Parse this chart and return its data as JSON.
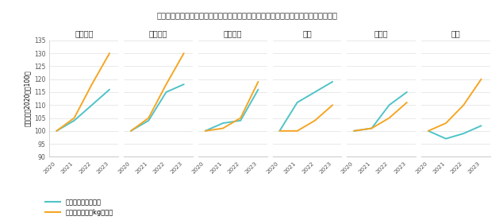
{
  "title": "ペットケア市場主要国における、可処分所得の中央値とペットフード単価推移の比較",
  "countries": [
    "アメリカ",
    "ブラジル",
    "イギリス",
    "中国",
    "ドイツ",
    "日本"
  ],
  "years": [
    2020,
    2021,
    2022,
    2023
  ],
  "income_data": {
    "アメリカ": [
      100,
      104,
      110,
      116
    ],
    "ブラジル": [
      100,
      104,
      115,
      118
    ],
    "イギリス": [
      100,
      103,
      104,
      116
    ],
    "中国": [
      100,
      111,
      115,
      119
    ],
    "ドイツ": [
      100,
      101,
      110,
      115
    ],
    "日本": [
      100,
      97,
      99,
      102
    ]
  },
  "petfood_data": {
    "アメリカ": [
      100,
      105,
      118,
      130
    ],
    "ブラジル": [
      100,
      105,
      118,
      130
    ],
    "イギリス": [
      100,
      101,
      105,
      119
    ],
    "中国": [
      100,
      100,
      104,
      110
    ],
    "ドイツ": [
      100,
      101,
      105,
      111
    ],
    "日本": [
      100,
      103,
      110,
      120
    ]
  },
  "income_color": "#4FC3C8",
  "petfood_color": "#F5A623",
  "income_label": "可処分所得の中央値",
  "petfood_label": "ペットフード１kg毎単価",
  "ylim": [
    90,
    135
  ],
  "yticks": [
    90,
    95,
    100,
    105,
    110,
    115,
    120,
    125,
    130,
    135
  ],
  "background_color": "#ffffff",
  "ylabel": "成長指数（2020年＝100）"
}
